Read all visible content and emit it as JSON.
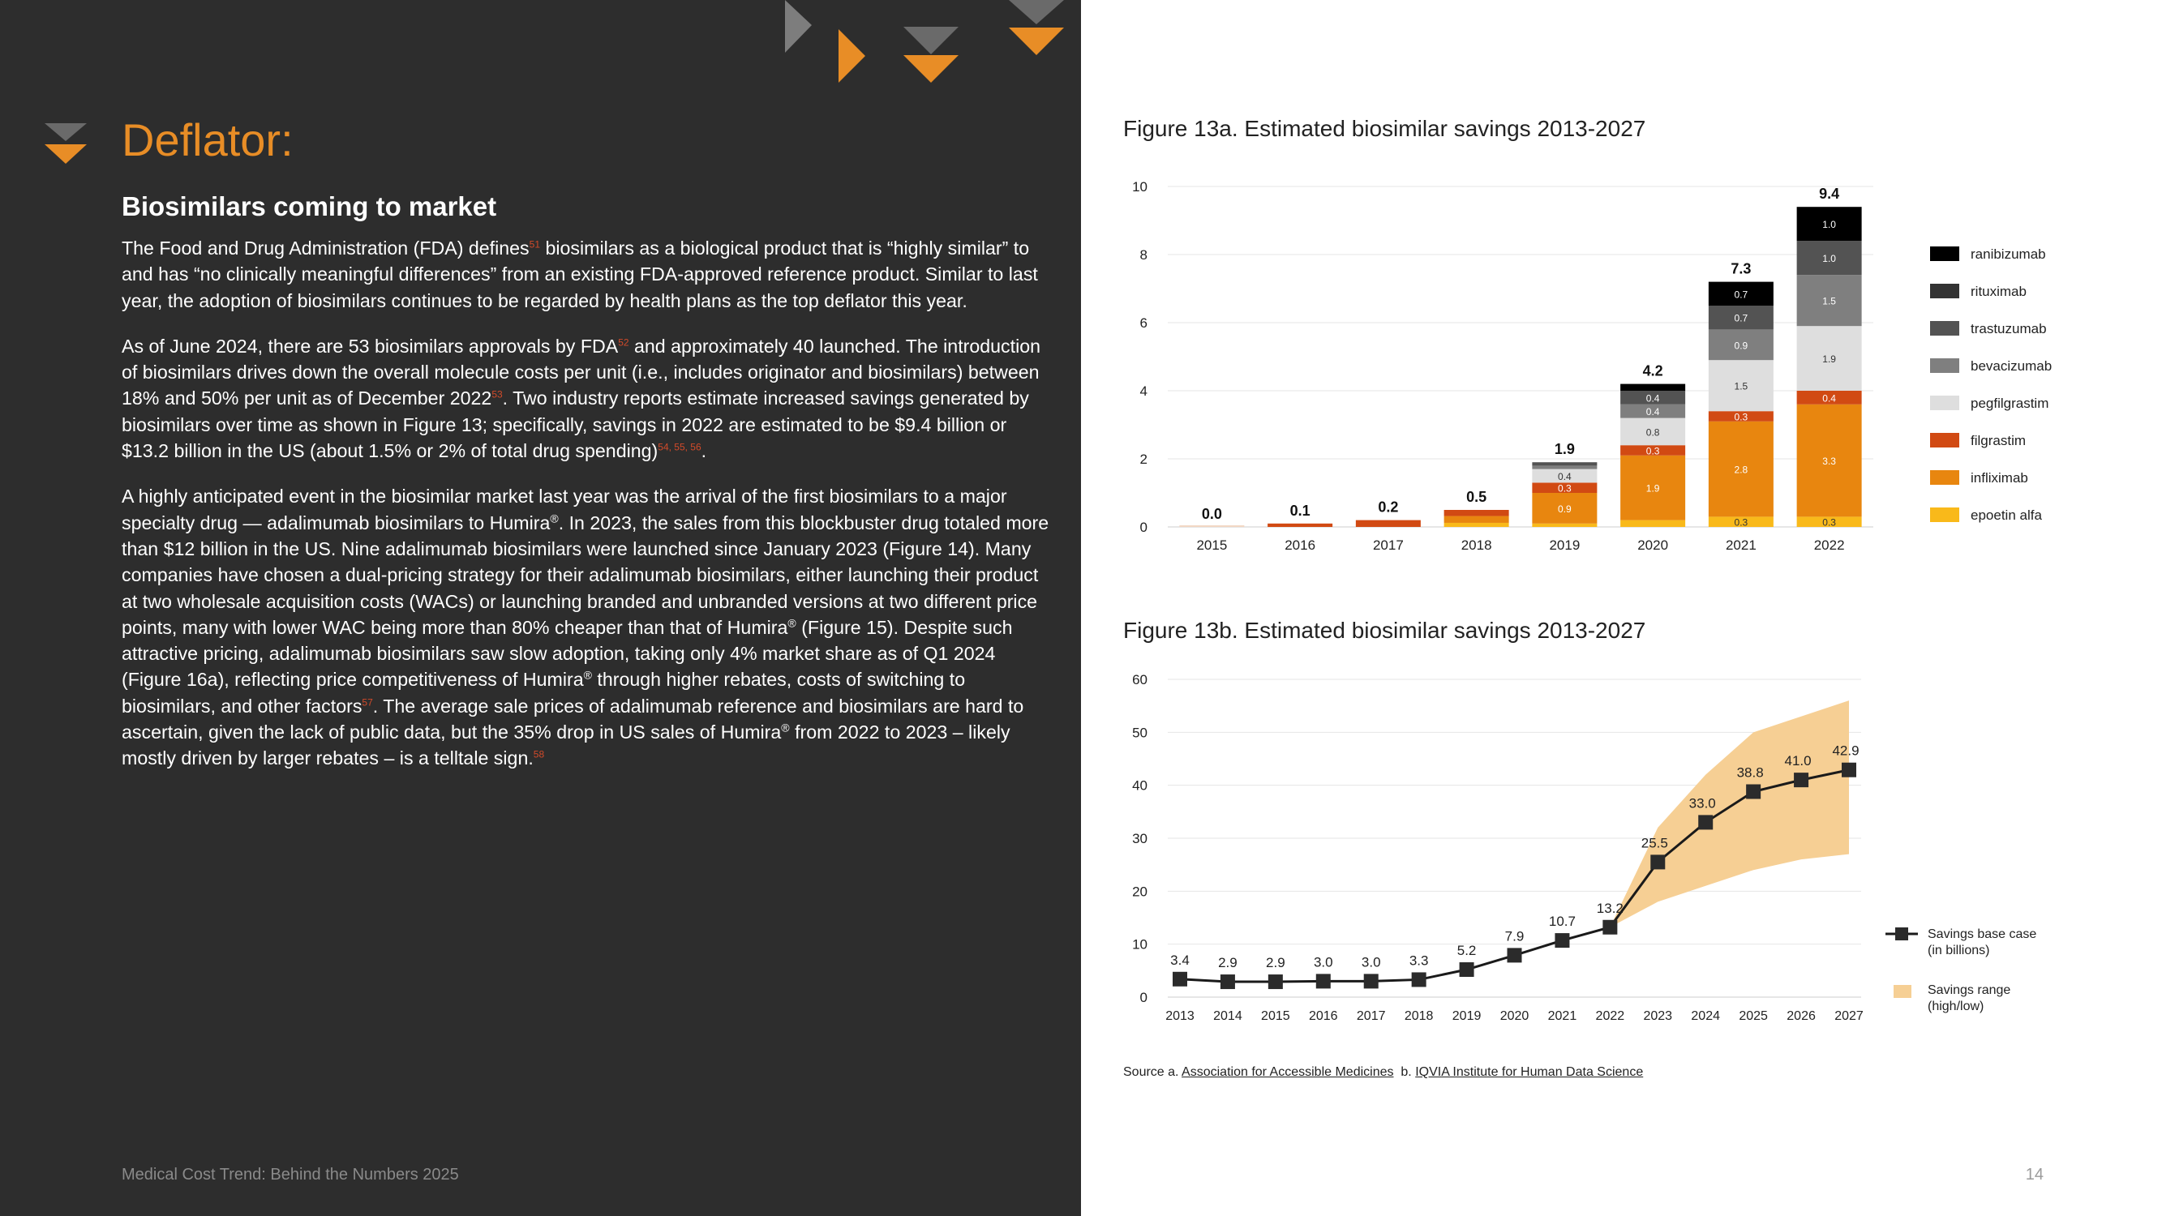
{
  "page": {
    "title": "Deflator:",
    "subtitle": "Biosimilars coming to market",
    "footer": "Medical Cost Trend: Behind the Numbers 2025",
    "page_number": "14",
    "paragraphs": {
      "p1": {
        "t1": "The Food and Drug Administration (FDA) defines",
        "r1": "51",
        "t2": " biosimilars as a biological product that is “highly similar” to and has “no clinically meaningful differences” from an existing FDA-approved reference product. Similar to last year, the adoption of biosimilars continues to be regarded by health plans as the top deflator this year."
      },
      "p2": {
        "t1": "As of June 2024, there are 53 biosimilars approvals by FDA",
        "r1": "52",
        "t2": " and approximately 40 launched. The introduction of biosimilars drives down the overall molecule costs per unit (i.e., includes originator and biosimilars) between 18% and 50% per unit as of December 2022",
        "r2": "53",
        "t3": ". Two industry reports estimate increased savings generated by biosimilars over time as shown in Figure 13; specifically, savings in 2022 are estimated to be $9.4 billion or $13.2 billion in the US (about 1.5% or 2% of total drug spending)",
        "r3": "54, 55, 56",
        "t4": "."
      },
      "p3": {
        "t1": "A highly anticipated event in the biosimilar market last year was the arrival of the first biosimilars to a major specialty drug — adalimumab biosimilars to Humira",
        "reg1": "®",
        "t2": ". In 2023, the sales from this blockbuster drug totaled more than $12 billion in the US.  Nine adalimumab biosimilars were launched since January 2023 (Figure 14). Many companies have chosen a dual-pricing strategy for their adalimumab biosimilars, either launching their product at two wholesale acquisition costs (WACs) or launching branded and unbranded versions at two different price points, many with lower WAC being more than 80% cheaper than that of Humira",
        "reg2": "®",
        "t3": " (Figure 15). Despite such attractive pricing, adalimumab biosimilars saw slow adoption, taking only 4% market share as of Q1 2024 (Figure 16a), reflecting price competitiveness of Humira",
        "reg3": "®",
        "t4": " through higher rebates, costs of switching to biosimilars, and other factors",
        "r1": "57",
        "t5": ". The average sale prices of adalimumab reference and biosimilars are hard to ascertain, given the lack of public data, but the 35% drop in US sales of Humira",
        "reg4": "®",
        "t6": " from 2022 to 2023 – likely mostly driven by larger rebates – is a telltale sign.",
        "r2": "58"
      }
    },
    "source": {
      "prefix_a": "Source a. ",
      "link_a": "Association for Accessible Medicines",
      "prefix_b": "  b. ",
      "link_b": "IQVIA Institute for Human Data Science "
    }
  },
  "chart_data": [
    {
      "type": "bar",
      "stacked": true,
      "title": "Figure 13a. Estimated biosimilar savings 2013-2027",
      "categories": [
        "2015",
        "2016",
        "2017",
        "2018",
        "2019",
        "2020",
        "2021",
        "2022"
      ],
      "ylim": [
        0,
        10
      ],
      "yticks": [
        0,
        2,
        4,
        6,
        8,
        10
      ],
      "totals": [
        "0.0",
        "0.1",
        "0.2",
        "0.5",
        "1.9",
        "4.2",
        "7.3",
        "9.4"
      ],
      "legend_position": "right",
      "series": [
        {
          "name": "epoetin alfa",
          "color": "#f9b91a",
          "values": [
            0,
            0,
            0,
            0.12,
            0.1,
            0.2,
            0.3,
            0.3
          ],
          "labels": [
            "",
            "",
            "",
            "",
            "",
            "",
            "0.3",
            "0.3"
          ]
        },
        {
          "name": "infliximab",
          "color": "#e8860f",
          "values": [
            0,
            0,
            0,
            0.2,
            0.9,
            1.9,
            2.8,
            3.3
          ],
          "labels": [
            "",
            "",
            "",
            "",
            "0.9",
            "1.9",
            "2.8",
            "3.3"
          ]
        },
        {
          "name": "filgrastim",
          "color": "#d14a13",
          "values": [
            0,
            0.1,
            0.2,
            0.18,
            0.3,
            0.3,
            0.3,
            0.4
          ],
          "labels": [
            "",
            "",
            "",
            "",
            "0.3",
            "0.3",
            "0.3",
            "0.4"
          ]
        },
        {
          "name": "pegfilgrastim",
          "color": "#dedede",
          "values": [
            0,
            0,
            0,
            0,
            0.4,
            0.8,
            1.5,
            1.9
          ],
          "labels": [
            "",
            "",
            "",
            "",
            "0.4",
            "0.8",
            "1.5",
            "1.9"
          ]
        },
        {
          "name": "bevacizumab",
          "color": "#7f7f7f",
          "values": [
            0,
            0,
            0,
            0,
            0.1,
            0.4,
            0.9,
            1.5
          ],
          "labels": [
            "",
            "",
            "",
            "",
            "",
            "0.4",
            "0.9",
            "1.5"
          ]
        },
        {
          "name": "trastuzumab",
          "color": "#535353",
          "values": [
            0,
            0,
            0,
            0,
            0.1,
            0.4,
            0.7,
            1.0
          ],
          "labels": [
            "",
            "",
            "",
            "",
            "",
            "0.4",
            "0.7",
            "1.0"
          ]
        },
        {
          "name": "rituximab",
          "color": "#333333",
          "values": [
            0,
            0,
            0,
            0,
            0,
            0,
            0,
            0
          ],
          "labels": [
            "",
            "",
            "",
            "",
            "",
            "",
            "",
            ""
          ]
        },
        {
          "name": "ranibizumab",
          "color": "#000000",
          "values": [
            0,
            0,
            0,
            0,
            0,
            0.2,
            0.7,
            1.0
          ],
          "labels": [
            "",
            "",
            "",
            "",
            "",
            "",
            "0.7",
            "1.0"
          ]
        }
      ]
    },
    {
      "type": "line",
      "title": "Figure 13b. Estimated biosimilar savings 2013-2027",
      "x": [
        "2013",
        "2014",
        "2015",
        "2016",
        "2017",
        "2018",
        "2019",
        "2020",
        "2021",
        "2022",
        "2023",
        "2024",
        "2025",
        "2026",
        "2027"
      ],
      "ylim": [
        0,
        60
      ],
      "yticks": [
        0,
        10,
        20,
        30,
        40,
        50,
        60
      ],
      "series": [
        {
          "name": "Savings base case (in billions)",
          "color": "#1a1a1a",
          "values": [
            3.4,
            2.9,
            2.9,
            3.0,
            3.0,
            3.3,
            5.2,
            7.9,
            10.7,
            13.2,
            25.5,
            33.0,
            38.8,
            41.0,
            42.9
          ],
          "labels": [
            "3.4",
            "2.9",
            "2.9",
            "3.0",
            "3.0",
            "3.3",
            "5.2",
            "7.9",
            "10.7",
            "13.2",
            "25.5",
            "33.0",
            "38.8",
            "41.0",
            "42.9"
          ]
        }
      ],
      "range": {
        "name": "Savings range (high/low)",
        "color": "#f6cf94",
        "x_start": "2022",
        "high": [
          13.2,
          32,
          42,
          50,
          53,
          56
        ],
        "low": [
          13.2,
          18,
          21,
          24,
          26,
          27
        ]
      },
      "legend": {
        "base_line1": "Savings base case",
        "base_line2": "(in billions)",
        "range_line1": "Savings range",
        "range_line2": "(high/low)"
      },
      "legend_position": "right"
    }
  ]
}
